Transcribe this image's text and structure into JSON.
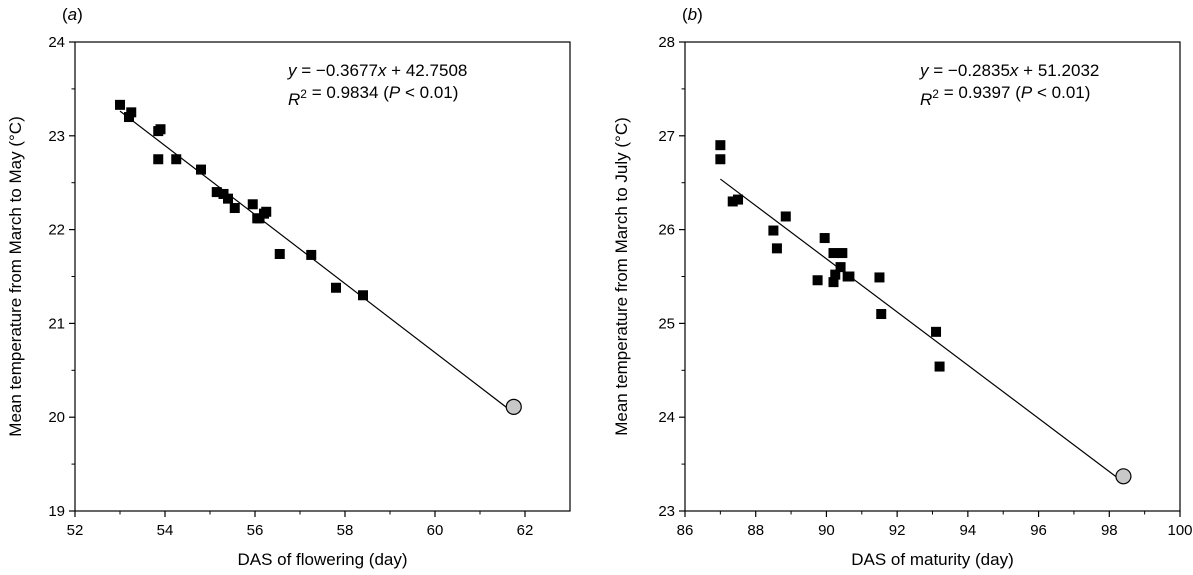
{
  "chart_data": [
    {
      "type": "scatter",
      "panel_label": "(a)",
      "xlabel": "DAS of flowering (day)",
      "ylabel": "Mean temperature from March to May (°C)",
      "xlim": [
        52,
        63
      ],
      "ylim": [
        19,
        24
      ],
      "xticks": [
        "52",
        "54",
        "56",
        "58",
        "60",
        "62"
      ],
      "yticks": [
        "19",
        "20",
        "21",
        "22",
        "23",
        "24"
      ],
      "equation": "y = −0.3677x + 42.7508",
      "r2_text": "R² = 0.9834 (P < 0.01)",
      "regression": {
        "slope": -0.3677,
        "intercept": 42.7508,
        "x_range": [
          53.0,
          61.75
        ]
      },
      "series": [
        {
          "points": [
            [
              53.0,
              23.33
            ],
            [
              53.2,
              23.2
            ],
            [
              53.25,
              23.25
            ],
            [
              53.85,
              23.05
            ],
            [
              53.9,
              23.07
            ],
            [
              53.85,
              22.75
            ],
            [
              54.25,
              22.75
            ],
            [
              54.8,
              22.64
            ],
            [
              55.15,
              22.4
            ],
            [
              55.3,
              22.38
            ],
            [
              55.4,
              22.33
            ],
            [
              55.55,
              22.23
            ],
            [
              55.95,
              22.27
            ],
            [
              56.05,
              22.12
            ],
            [
              56.1,
              22.12
            ],
            [
              56.2,
              22.17
            ],
            [
              56.25,
              22.19
            ],
            [
              56.55,
              21.74
            ],
            [
              57.25,
              21.73
            ],
            [
              57.8,
              21.38
            ],
            [
              58.4,
              21.3
            ]
          ]
        },
        {
          "points": [
            [
              61.75,
              20.11
            ]
          ]
        }
      ]
    },
    {
      "type": "scatter",
      "panel_label": "(b)",
      "xlabel": "DAS of maturity (day)",
      "ylabel": "Mean temperature from March to July (°C)",
      "xlim": [
        86,
        100
      ],
      "ylim": [
        23,
        28
      ],
      "xticks": [
        "86",
        "88",
        "90",
        "92",
        "94",
        "96",
        "98",
        "100"
      ],
      "yticks": [
        "23",
        "24",
        "25",
        "26",
        "27",
        "28"
      ],
      "equation": "y = −0.2835x + 51.2032",
      "r2_text": "R² = 0.9397 (P < 0.01)",
      "regression": {
        "slope": -0.2835,
        "intercept": 51.2032,
        "x_range": [
          87.0,
          98.4
        ]
      },
      "series": [
        {
          "points": [
            [
              87.0,
              26.9
            ],
            [
              87.0,
              26.75
            ],
            [
              87.35,
              26.3
            ],
            [
              87.5,
              26.32
            ],
            [
              88.5,
              25.99
            ],
            [
              88.6,
              25.8
            ],
            [
              88.85,
              26.14
            ],
            [
              89.75,
              25.46
            ],
            [
              89.95,
              25.91
            ],
            [
              90.2,
              25.44
            ],
            [
              90.2,
              25.75
            ],
            [
              90.25,
              25.52
            ],
            [
              90.4,
              25.6
            ],
            [
              90.45,
              25.75
            ],
            [
              90.6,
              25.5
            ],
            [
              90.65,
              25.5
            ],
            [
              91.5,
              25.49
            ],
            [
              91.55,
              25.1
            ],
            [
              93.1,
              24.91
            ],
            [
              93.2,
              24.54
            ]
          ]
        },
        {
          "points": [
            [
              98.4,
              23.37
            ]
          ]
        }
      ]
    }
  ],
  "colors": {
    "marker": "#000000",
    "predicted_fill": "#c8c8c8",
    "line": "#000000"
  }
}
